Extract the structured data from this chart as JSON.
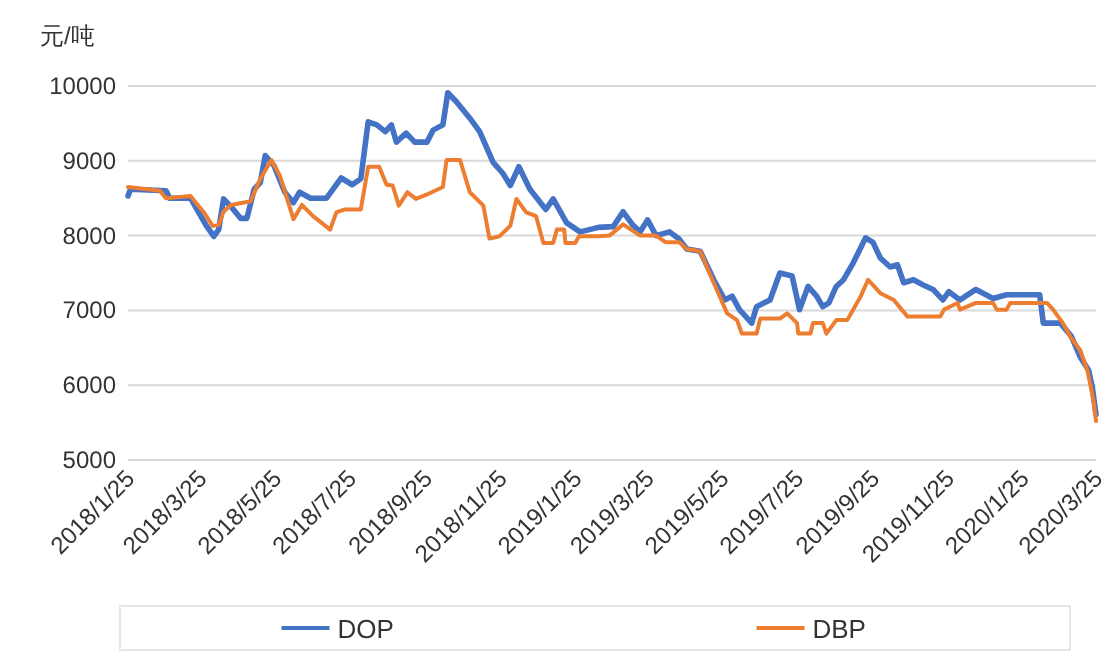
{
  "chart_data": {
    "type": "line",
    "ylabel": "元/吨",
    "xlim": [
      "2018-01-25",
      "2020-03-25"
    ],
    "ylim": [
      5000,
      10000
    ],
    "yticks": [
      5000,
      6000,
      7000,
      8000,
      9000,
      10000
    ],
    "xticks": [
      {
        "value": "2018-01-25",
        "label": "2018/1/25"
      },
      {
        "value": "2018-03-25",
        "label": "2018/3/25"
      },
      {
        "value": "2018-05-25",
        "label": "2018/5/25"
      },
      {
        "value": "2018-07-25",
        "label": "2018/7/25"
      },
      {
        "value": "2018-09-25",
        "label": "2018/9/25"
      },
      {
        "value": "2018-11-25",
        "label": "2018/11/25"
      },
      {
        "value": "2019-01-25",
        "label": "2019/1/25"
      },
      {
        "value": "2019-03-25",
        "label": "2019/3/25"
      },
      {
        "value": "2019-05-25",
        "label": "2019/5/25"
      },
      {
        "value": "2019-07-25",
        "label": "2019/7/25"
      },
      {
        "value": "2019-09-25",
        "label": "2019/9/25"
      },
      {
        "value": "2019-11-25",
        "label": "2019/11/25"
      },
      {
        "value": "2020-01-25",
        "label": "2020/1/25"
      },
      {
        "value": "2020-03-25",
        "label": "2020/3/25"
      }
    ],
    "grid": "y",
    "legend": "bottom",
    "series": [
      {
        "name": "DOP",
        "color": "#4472c4",
        "x": [
          "2018-01-25",
          "2018-01-27",
          "2018-02-25",
          "2018-02-28",
          "2018-03-17",
          "2018-03-30",
          "2018-04-05",
          "2018-04-09",
          "2018-04-13",
          "2018-04-21",
          "2018-04-27",
          "2018-05-02",
          "2018-05-08",
          "2018-05-13",
          "2018-05-17",
          "2018-05-24",
          "2018-06-02",
          "2018-06-09",
          "2018-06-14",
          "2018-06-23",
          "2018-07-06",
          "2018-07-18",
          "2018-07-27",
          "2018-08-03",
          "2018-08-09",
          "2018-08-16",
          "2018-08-23",
          "2018-08-28",
          "2018-09-01",
          "2018-09-09",
          "2018-09-16",
          "2018-09-26",
          "2018-10-01",
          "2018-10-09",
          "2018-10-13",
          "2018-10-20",
          "2018-10-31",
          "2018-11-08",
          "2018-11-19",
          "2018-11-27",
          "2018-12-03",
          "2018-12-10",
          "2018-12-19",
          "2019-01-01",
          "2019-01-07",
          "2019-01-18",
          "2019-01-29",
          "2019-02-13",
          "2019-02-25",
          "2019-03-05",
          "2019-03-13",
          "2019-03-19",
          "2019-03-25",
          "2019-04-01",
          "2019-04-12",
          "2019-04-20",
          "2019-04-26",
          "2019-05-07",
          "2019-05-18",
          "2019-05-27",
          "2019-06-02",
          "2019-06-08",
          "2019-06-18",
          "2019-06-22",
          "2019-07-03",
          "2019-07-07",
          "2019-07-11",
          "2019-07-21",
          "2019-07-27",
          "2019-08-03",
          "2019-08-10",
          "2019-08-15",
          "2019-08-20",
          "2019-08-26",
          "2019-09-01",
          "2019-09-09",
          "2019-09-19",
          "2019-09-25",
          "2019-10-01",
          "2019-10-09",
          "2019-10-15",
          "2019-10-20",
          "2019-10-28",
          "2019-11-05",
          "2019-11-13",
          "2019-11-21",
          "2019-11-26",
          "2019-12-05",
          "2019-12-18",
          "2020-01-01",
          "2020-01-12",
          "2020-02-08",
          "2020-02-11",
          "2020-02-25",
          "2020-03-05",
          "2020-03-12",
          "2020-03-19",
          "2020-03-22",
          "2020-03-25"
        ],
        "values": [
          8530,
          8620,
          8600,
          8500,
          8500,
          8130,
          7990,
          8080,
          8490,
          8350,
          8230,
          8230,
          8620,
          8710,
          9070,
          8940,
          8580,
          8440,
          8580,
          8500,
          8500,
          8770,
          8680,
          8760,
          9520,
          9480,
          9390,
          9480,
          9250,
          9370,
          9250,
          9250,
          9410,
          9480,
          9910,
          9790,
          9570,
          9390,
          8980,
          8830,
          8670,
          8920,
          8620,
          8350,
          8490,
          8170,
          8050,
          8110,
          8120,
          8320,
          8140,
          8050,
          8210,
          8000,
          8050,
          7950,
          7820,
          7790,
          7410,
          7140,
          7190,
          7010,
          6830,
          7050,
          7140,
          7320,
          7500,
          7460,
          7010,
          7320,
          7190,
          7050,
          7100,
          7320,
          7410,
          7640,
          7970,
          7910,
          7700,
          7580,
          7610,
          7370,
          7410,
          7340,
          7280,
          7140,
          7250,
          7140,
          7280,
          7160,
          7210,
          7210,
          6830,
          6830,
          6650,
          6380,
          6200,
          5970,
          5610
        ]
      },
      {
        "name": "DBP",
        "color": "#ed7d31",
        "x": [
          "2018-01-25",
          "2018-02-20",
          "2018-02-25",
          "2018-03-17",
          "2018-03-28",
          "2018-04-04",
          "2018-04-09",
          "2018-04-13",
          "2018-04-19",
          "2018-05-05",
          "2018-05-13",
          "2018-05-22",
          "2018-05-29",
          "2018-06-09",
          "2018-06-16",
          "2018-06-25",
          "2018-07-09",
          "2018-07-14",
          "2018-07-21",
          "2018-08-03",
          "2018-08-09",
          "2018-08-18",
          "2018-08-24",
          "2018-08-29",
          "2018-09-03",
          "2018-09-10",
          "2018-09-17",
          "2018-09-26",
          "2018-10-09",
          "2018-10-12",
          "2018-10-23",
          "2018-10-31",
          "2018-11-11",
          "2018-11-16",
          "2018-11-24",
          "2018-12-03",
          "2018-12-08",
          "2018-12-16",
          "2018-12-24",
          "2018-12-30",
          "2019-01-07",
          "2019-01-10",
          "2019-01-16",
          "2019-01-17",
          "2019-01-25",
          "2019-01-28",
          "2019-02-13",
          "2019-02-22",
          "2019-03-05",
          "2019-03-19",
          "2019-04-01",
          "2019-04-09",
          "2019-04-20",
          "2019-04-26",
          "2019-05-07",
          "2019-05-18",
          "2019-05-29",
          "2019-06-06",
          "2019-06-10",
          "2019-06-22",
          "2019-06-25",
          "2019-07-11",
          "2019-07-17",
          "2019-07-25",
          "2019-07-26",
          "2019-08-05",
          "2019-08-07",
          "2019-08-15",
          "2019-08-18",
          "2019-08-26",
          "2019-09-04",
          "2019-09-15",
          "2019-09-21",
          "2019-10-01",
          "2019-10-12",
          "2019-10-23",
          "2019-11-19",
          "2019-11-22",
          "2019-12-03",
          "2019-12-05",
          "2019-12-18",
          "2020-01-01",
          "2020-01-04",
          "2020-01-12",
          "2020-01-15",
          "2020-02-14",
          "2020-02-19",
          "2020-02-27",
          "2020-03-04",
          "2020-03-12",
          "2020-03-18",
          "2020-03-23",
          "2020-03-25"
        ],
        "values": [
          8650,
          8600,
          8500,
          8530,
          8310,
          8130,
          8140,
          8320,
          8410,
          8460,
          8760,
          9010,
          8800,
          8220,
          8410,
          8260,
          8080,
          8310,
          8350,
          8350,
          8920,
          8920,
          8680,
          8670,
          8400,
          8580,
          8490,
          8550,
          8650,
          9010,
          9010,
          8580,
          8400,
          7960,
          7990,
          8130,
          8490,
          8310,
          8260,
          7900,
          7900,
          8080,
          8080,
          7900,
          7900,
          7990,
          7990,
          8000,
          8150,
          8000,
          8000,
          7910,
          7910,
          7820,
          7790,
          7370,
          6960,
          6870,
          6690,
          6690,
          6890,
          6890,
          6960,
          6830,
          6690,
          6690,
          6830,
          6830,
          6690,
          6870,
          6870,
          7190,
          7410,
          7230,
          7140,
          6920,
          6920,
          7010,
          7100,
          7010,
          7100,
          7100,
          7010,
          7010,
          7100,
          7100,
          7010,
          6830,
          6650,
          6470,
          6200,
          5790,
          5520
        ]
      }
    ]
  }
}
